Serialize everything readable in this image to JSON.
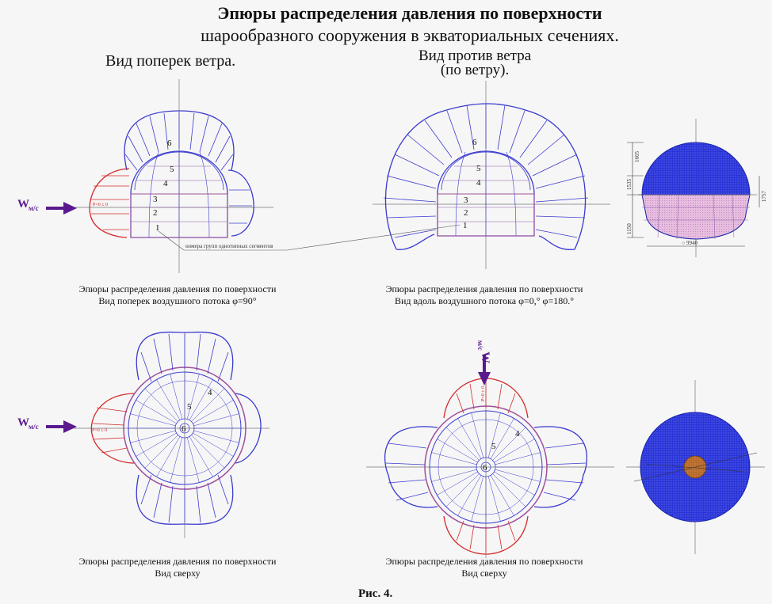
{
  "title": {
    "line1": "Эпюры распределения давления по поверхности",
    "line2": "шарообразного сооружения в экваториальных сечениях."
  },
  "views": {
    "cross_wind": "Вид поперек ветра.",
    "against_wind_1": "Вид против ветра",
    "against_wind_2": "(по ветру)."
  },
  "captions": {
    "top_left_1": "Эпюры распределения давления по поверхности",
    "top_left_2": "Вид поперек воздушного потока φ=90°",
    "top_right_1": "Эпюры распределения давления по поверхности",
    "top_right_2": "Вид вдоль воздушного потока φ=0,°  φ=180.°",
    "bottom_left_1": "Эпюры распределения давления по поверхности",
    "bottom_left_2": "Вид сверху",
    "bottom_right_1": "Эпюры распределения давления по поверхности",
    "bottom_right_2": "Вид сверху"
  },
  "labels": {
    "wind": "W",
    "wind_unit": "м/с",
    "segments": [
      "1",
      "2",
      "3",
      "4",
      "5",
      "6"
    ],
    "segment_note": "номера групп однотипных сегментов",
    "pressure_zero": "P=0 ± 0"
  },
  "dims": {
    "d1": "1665",
    "d2": "1535",
    "d3": "1150",
    "d4": "1757",
    "width": "○ 9940"
  },
  "figure_label": "Рис.  4.",
  "colors": {
    "suction": "#3a3ad0",
    "pressure": "#d42a2a",
    "dome": "#2a34d8",
    "base": "#e7bde0",
    "wind": "#5a1a8e",
    "core": "#b5682a"
  }
}
